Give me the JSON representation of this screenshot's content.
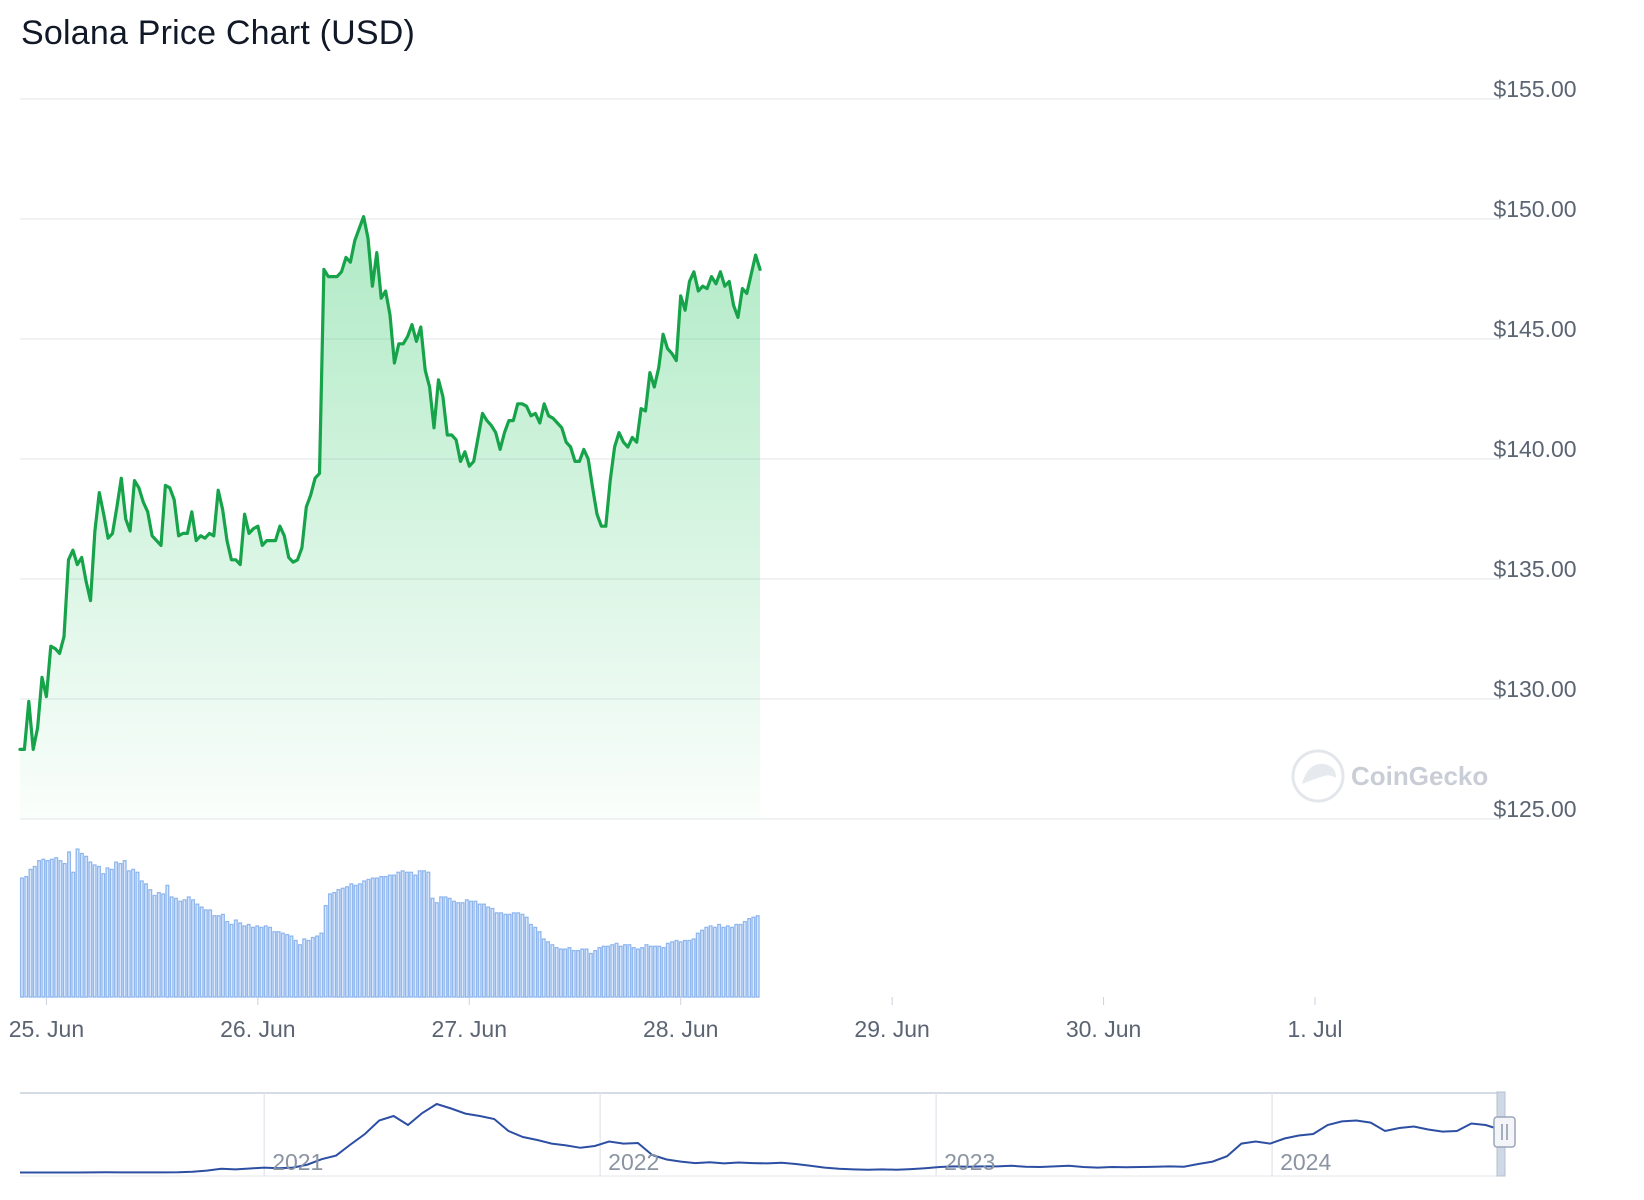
{
  "chart_data": {
    "type": "line",
    "title": "Solana Price Chart (USD)",
    "watermark": "CoinGecko",
    "currency": "USD",
    "colors": {
      "line": "#16a34a",
      "area": "#22c55e",
      "volume": "#8fb7ee",
      "navigator": "#2d4fa3"
    },
    "y_ticks": [
      "$155.00",
      "$150.00",
      "$145.00",
      "$140.00",
      "$135.00",
      "$130.00",
      "$125.00"
    ],
    "ylim": [
      125,
      155
    ],
    "x_ticks": [
      "25. Jun",
      "26. Jun",
      "27. Jun",
      "28. Jun",
      "29. Jun",
      "30. Jun",
      "1. Jul"
    ],
    "xlim": [
      "2024-06-24T21:00",
      "2024-07-01T21:00"
    ],
    "grid": true,
    "series": [
      {
        "name": "Price",
        "x_start": "2024-06-24T21:00",
        "x_step_hours": 0.5,
        "values": [
          127.9,
          127.9,
          129.9,
          127.9,
          128.8,
          130.9,
          130.1,
          132.2,
          132.1,
          131.9,
          132.6,
          135.8,
          136.2,
          135.6,
          135.9,
          134.9,
          134.1,
          137.0,
          138.6,
          137.7,
          136.7,
          136.9,
          138.0,
          139.2,
          137.5,
          137.0,
          139.1,
          138.8,
          138.2,
          137.8,
          136.8,
          136.6,
          136.4,
          138.9,
          138.8,
          138.3,
          136.8,
          136.9,
          136.9,
          137.8,
          136.6,
          136.8,
          136.7,
          136.9,
          136.8,
          138.7,
          137.9,
          136.6,
          135.8,
          135.8,
          135.6,
          137.7,
          136.9,
          137.1,
          137.2,
          136.4,
          136.6,
          136.6,
          136.6,
          137.2,
          136.8,
          135.9,
          135.7,
          135.8,
          136.3,
          138.0,
          138.5,
          139.2,
          139.4,
          147.9,
          147.6,
          147.6,
          147.6,
          147.8,
          148.4,
          148.2,
          149.1,
          149.6,
          150.1,
          149.2,
          147.2,
          148.6,
          146.7,
          147.0,
          146.0,
          144.0,
          144.8,
          144.8,
          145.1,
          145.6,
          144.9,
          145.5,
          143.7,
          143.0,
          141.3,
          143.3,
          142.6,
          141.0,
          141.0,
          140.8,
          139.9,
          140.3,
          139.7,
          139.9,
          140.9,
          141.9,
          141.6,
          141.4,
          141.1,
          140.4,
          141.1,
          141.6,
          141.6,
          142.3,
          142.3,
          142.2,
          141.8,
          141.9,
          141.5,
          142.3,
          141.8,
          141.7,
          141.5,
          141.3,
          140.7,
          140.5,
          139.9,
          139.9,
          140.4,
          140.0,
          138.8,
          137.7,
          137.2,
          137.2,
          139.1,
          140.5,
          141.1,
          140.7,
          140.5,
          140.9,
          140.7,
          142.1,
          142.0,
          143.6,
          143.0,
          143.8,
          145.2,
          144.6,
          144.4,
          144.1,
          146.8,
          146.2,
          147.4,
          147.8,
          147.0,
          147.2,
          147.1,
          147.6,
          147.3,
          147.8,
          147.2,
          147.4,
          146.4,
          145.9,
          147.1,
          146.9,
          147.7,
          148.5,
          147.9
        ]
      }
    ],
    "volume": {
      "values": [
        0.82,
        0.83,
        0.88,
        0.9,
        0.94,
        0.95,
        0.94,
        0.95,
        0.96,
        0.94,
        0.92,
        1.0,
        0.86,
        1.02,
        0.99,
        0.97,
        0.93,
        0.91,
        0.9,
        0.85,
        0.89,
        0.88,
        0.93,
        0.92,
        0.94,
        0.87,
        0.88,
        0.86,
        0.8,
        0.78,
        0.74,
        0.7,
        0.72,
        0.71,
        0.77,
        0.69,
        0.68,
        0.66,
        0.67,
        0.69,
        0.67,
        0.64,
        0.62,
        0.6,
        0.6,
        0.56,
        0.56,
        0.57,
        0.52,
        0.5,
        0.53,
        0.51,
        0.49,
        0.5,
        0.48,
        0.49,
        0.48,
        0.49,
        0.48,
        0.45,
        0.45,
        0.44,
        0.43,
        0.42,
        0.39,
        0.36,
        0.4,
        0.39,
        0.41,
        0.42,
        0.44,
        0.63,
        0.71,
        0.72,
        0.74,
        0.75,
        0.76,
        0.78,
        0.77,
        0.78,
        0.8,
        0.81,
        0.82,
        0.82,
        0.83,
        0.83,
        0.84,
        0.84,
        0.86,
        0.87,
        0.86,
        0.86,
        0.84,
        0.87,
        0.87,
        0.86,
        0.68,
        0.65,
        0.69,
        0.69,
        0.68,
        0.66,
        0.65,
        0.65,
        0.67,
        0.66,
        0.66,
        0.64,
        0.64,
        0.62,
        0.61,
        0.58,
        0.58,
        0.57,
        0.57,
        0.58,
        0.58,
        0.57,
        0.55,
        0.5,
        0.48,
        0.45,
        0.4,
        0.38,
        0.36,
        0.34,
        0.33,
        0.33,
        0.34,
        0.32,
        0.32,
        0.33,
        0.33,
        0.3,
        0.32,
        0.34,
        0.35,
        0.35,
        0.36,
        0.37,
        0.35,
        0.36,
        0.36,
        0.34,
        0.33,
        0.34,
        0.36,
        0.35,
        0.35,
        0.35,
        0.34,
        0.37,
        0.38,
        0.39,
        0.38,
        0.39,
        0.39,
        0.4,
        0.44,
        0.46,
        0.48,
        0.49,
        0.48,
        0.5,
        0.48,
        0.49,
        0.48,
        0.5,
        0.5,
        0.52,
        0.54,
        0.55,
        0.56
      ]
    },
    "navigator": {
      "x_ticks": [
        "2021",
        "2022",
        "2023",
        "2024"
      ],
      "values": [
        1.5,
        1.5,
        1.6,
        1.7,
        1.8,
        2.0,
        2.2,
        2.1,
        2.0,
        2.0,
        2.1,
        2.3,
        4,
        8,
        14,
        12,
        15,
        18,
        16,
        18,
        28,
        46,
        58,
        95,
        130,
        175,
        190,
        160,
        200,
        230,
        215,
        198,
        190,
        180,
        140,
        120,
        110,
        98,
        92,
        84,
        90,
        105,
        98,
        100,
        60,
        45,
        38,
        33,
        36,
        32,
        35,
        33,
        32,
        34,
        30,
        24,
        18,
        14,
        12,
        11,
        12,
        11,
        13,
        16,
        20,
        22,
        21,
        22,
        22,
        24,
        21,
        20,
        22,
        24,
        20,
        18,
        20,
        19,
        20,
        21,
        22,
        21,
        30,
        38,
        56,
        98,
        105,
        98,
        115,
        125,
        130,
        160,
        172,
        175,
        168,
        140,
        150,
        155,
        145,
        138,
        140,
        165,
        160,
        145
      ]
    }
  }
}
